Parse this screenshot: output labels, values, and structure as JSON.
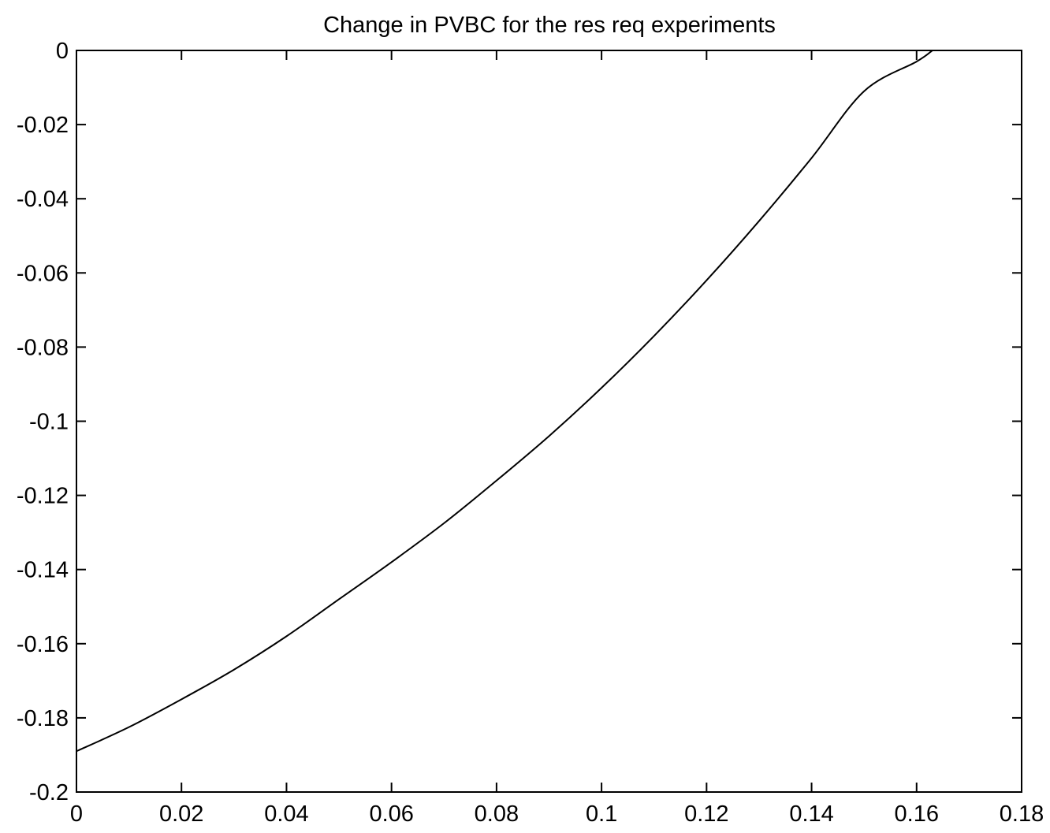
{
  "chart_data": {
    "type": "line",
    "title": "Change in PVBC for the res req experiments",
    "xlabel": "",
    "ylabel": "",
    "xlim": [
      0,
      0.18
    ],
    "ylim": [
      -0.2,
      0
    ],
    "grid": false,
    "legend": "none",
    "x_ticks": [
      0,
      0.02,
      0.04,
      0.06,
      0.08,
      0.1,
      0.12,
      0.14,
      0.16,
      0.18
    ],
    "x_tick_labels": [
      "0",
      "0.02",
      "0.04",
      "0.06",
      "0.08",
      "0.1",
      "0.12",
      "0.14",
      "0.16",
      "0.18"
    ],
    "y_ticks": [
      0,
      -0.02,
      -0.04,
      -0.06,
      -0.08,
      -0.1,
      -0.12,
      -0.14,
      -0.16,
      -0.18,
      -0.2
    ],
    "y_tick_labels": [
      "0",
      "-0.02",
      "-0.04",
      "-0.06",
      "-0.08",
      "-0.1",
      "-0.12",
      "-0.14",
      "-0.16",
      "-0.18",
      "-0.2"
    ],
    "series": [
      {
        "color": "#000000",
        "x": [
          0,
          0.01,
          0.02,
          0.03,
          0.04,
          0.05,
          0.06,
          0.07,
          0.08,
          0.09,
          0.1,
          0.11,
          0.12,
          0.13,
          0.14,
          0.15,
          0.16,
          0.163
        ],
        "y": [
          -0.189,
          -0.1825,
          -0.175,
          -0.167,
          -0.158,
          -0.148,
          -0.138,
          -0.1275,
          -0.116,
          -0.104,
          -0.091,
          -0.077,
          -0.062,
          -0.046,
          -0.029,
          -0.011,
          -0.003,
          0
        ]
      }
    ]
  }
}
